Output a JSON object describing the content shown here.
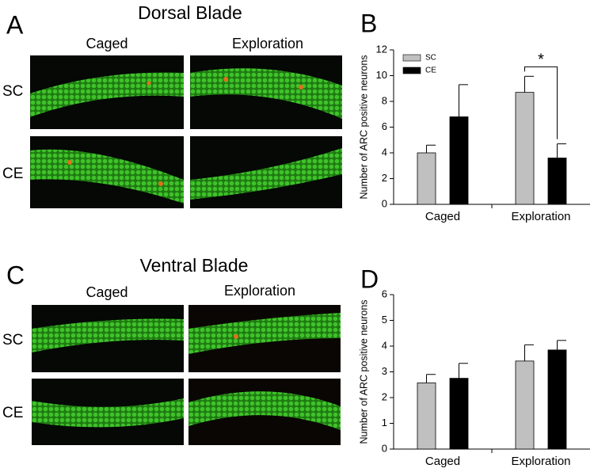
{
  "figure": {
    "top": {
      "panel": "A",
      "title": "Dorsal Blade",
      "columns": [
        "Caged",
        "Exploration"
      ],
      "rows": [
        "SC",
        "CE"
      ]
    },
    "bottom": {
      "panel": "C",
      "title": "Ventral Blade",
      "columns": [
        "Caged",
        "Exploration"
      ],
      "rows": [
        "SC",
        "CE"
      ]
    }
  },
  "chart_data": [
    {
      "type": "bar",
      "panel": "B",
      "y_label": "Number of ARC positive neurons",
      "categories": [
        "Caged",
        "Exploration"
      ],
      "series": [
        {
          "name": "SC",
          "color": "#c0c0c0",
          "values": [
            4.0,
            8.7
          ],
          "errors": [
            0.6,
            1.25
          ]
        },
        {
          "name": "CE",
          "color": "#000000",
          "values": [
            6.8,
            3.6
          ],
          "errors": [
            2.5,
            1.1
          ]
        }
      ],
      "ylim": [
        0,
        12
      ],
      "yticks": [
        0,
        2,
        4,
        6,
        8,
        10,
        12
      ],
      "legend": "top-left",
      "annotation": "*"
    },
    {
      "type": "bar",
      "panel": "D",
      "y_label": "Number of ARC positive neurons",
      "categories": [
        "Caged",
        "Exploration"
      ],
      "series": [
        {
          "color": "#c0c0c0",
          "values": [
            2.57,
            3.42
          ],
          "errors": [
            0.33,
            0.63
          ]
        },
        {
          "color": "#000000",
          "values": [
            2.75,
            3.85
          ],
          "errors": [
            0.58,
            0.37
          ]
        }
      ],
      "ylim": [
        0,
        6
      ],
      "yticks": [
        0,
        1,
        2,
        3,
        4,
        5,
        6
      ]
    }
  ]
}
